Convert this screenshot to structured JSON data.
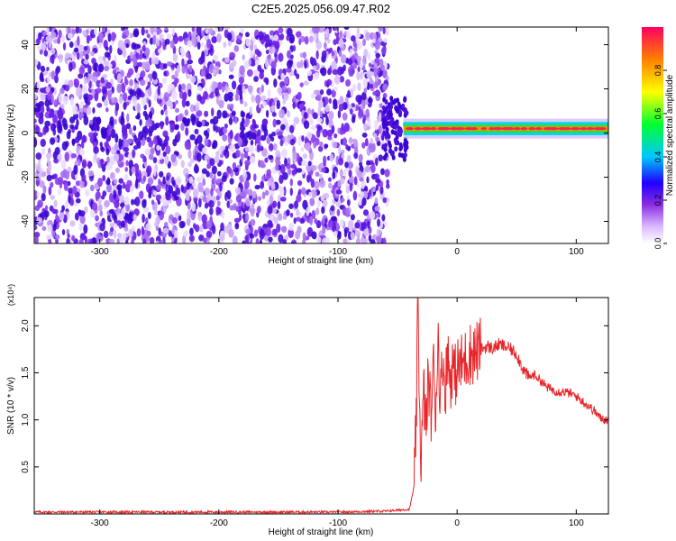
{
  "figure_title": "C2E5.2025.056.09.47.R02",
  "colorbar": {
    "label": "Normalized spectral amplitude",
    "ticks": [
      "0.0",
      "0.2",
      "0.4",
      "0.6",
      "0.8"
    ]
  },
  "chart_data": [
    {
      "type": "heatmap",
      "title": "C2E5.2025.056.09.47.R02",
      "xlabel": "Height of straight line (km)",
      "ylabel": "Frequency (Hz)",
      "xlim": [
        -355,
        127
      ],
      "ylim": [
        -50,
        48
      ],
      "xticks": [
        -300,
        -200,
        -100,
        0,
        100
      ],
      "yticks": [
        -40,
        -20,
        0,
        20,
        40
      ],
      "colorbar": {
        "label": "Normalized spectral amplitude",
        "range": [
          0,
          1
        ],
        "ticks": [
          0.0,
          0.2,
          0.4,
          0.6,
          0.8
        ]
      },
      "description_regions": {
        "noise_region_x": [
          -355,
          -58
        ],
        "signal_center_frequency_hz": 2,
        "signal_x": [
          -58,
          127
        ]
      }
    },
    {
      "type": "line",
      "xlabel": "Height of straight line (km)",
      "ylabel": "SNR (10 * v/v)",
      "y_multiplier": "(x10⁴)",
      "xlim": [
        -355,
        127
      ],
      "ylim": [
        0,
        2.3
      ],
      "xticks": [
        -300,
        -200,
        -100,
        0,
        100
      ],
      "yticks": [
        0.5,
        1.0,
        1.5,
        2.0
      ],
      "series": [
        {
          "color": "#e8262a",
          "x": [
            -355,
            -300,
            -200,
            -100,
            -60,
            -40,
            -36,
            -34,
            -33,
            -32,
            -31,
            -30,
            -28,
            -26,
            -24,
            -22,
            -20,
            -18,
            -16,
            -14,
            -12,
            -10,
            -8,
            -6,
            -4,
            -2,
            0,
            5,
            10,
            15,
            20,
            25,
            30,
            35,
            40,
            45,
            50,
            55,
            60,
            65,
            70,
            75,
            80,
            85,
            90,
            95,
            100,
            105,
            110,
            115,
            120,
            127
          ],
          "y": [
            0.02,
            0.02,
            0.02,
            0.02,
            0.03,
            0.05,
            0.3,
            1.2,
            2.25,
            1.6,
            0.8,
            0.6,
            1.3,
            0.9,
            1.5,
            1.0,
            1.6,
            1.1,
            1.9,
            1.2,
            1.7,
            1.3,
            1.75,
            1.4,
            1.6,
            1.45,
            1.55,
            1.6,
            1.7,
            1.72,
            1.75,
            1.78,
            1.76,
            1.8,
            1.78,
            1.75,
            1.7,
            1.55,
            1.45,
            1.48,
            1.42,
            1.35,
            1.32,
            1.3,
            1.3,
            1.28,
            1.25,
            1.2,
            1.15,
            1.1,
            1.02,
            1.0
          ]
        }
      ]
    }
  ]
}
